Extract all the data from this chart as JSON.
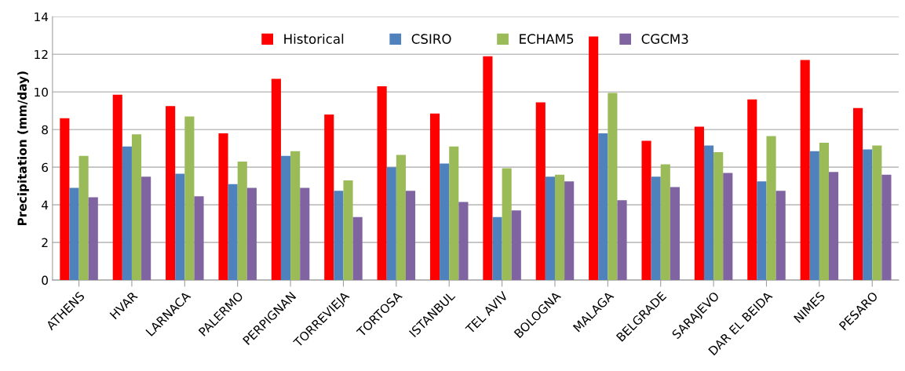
{
  "chart_data": {
    "type": "bar",
    "ylabel": "Precipitation (mm/day)",
    "categories": [
      "ATHENS",
      "HVAR",
      "LARNACA",
      "PALERMO",
      "PERPIGNAN",
      "TORREVIEJA",
      "TORTOSA",
      "ISTANBUL",
      "TEL AVIV",
      "BOLOGNA",
      "MALAGA",
      "BELGRADE",
      "SARAJEVO",
      "DAR EL BEIDA",
      "NIMES",
      "PESARO"
    ],
    "series": [
      {
        "name": "Historical",
        "color": "#ff0000",
        "values": [
          8.6,
          9.85,
          9.25,
          7.8,
          10.7,
          8.8,
          10.3,
          8.85,
          11.9,
          9.45,
          12.95,
          7.4,
          8.15,
          9.6,
          11.7,
          9.15
        ]
      },
      {
        "name": "CSIRO",
        "color": "#4f81bd",
        "values": [
          4.9,
          7.1,
          5.65,
          5.1,
          6.6,
          4.75,
          6.0,
          6.2,
          3.35,
          5.5,
          7.8,
          5.5,
          7.15,
          5.25,
          6.85,
          6.95
        ]
      },
      {
        "name": "ECHAM5",
        "color": "#9bbb59",
        "values": [
          6.6,
          7.75,
          8.7,
          6.3,
          6.85,
          5.3,
          6.65,
          7.1,
          5.95,
          5.6,
          9.95,
          6.15,
          6.8,
          7.65,
          7.3,
          7.15
        ]
      },
      {
        "name": "CGCM3",
        "color": "#8064a2",
        "values": [
          4.4,
          5.5,
          4.45,
          4.9,
          4.9,
          3.35,
          4.75,
          4.15,
          3.7,
          5.25,
          4.25,
          4.95,
          5.7,
          4.75,
          5.75,
          5.6
        ]
      }
    ],
    "ylim": [
      0,
      14
    ],
    "yticks": [
      0,
      2,
      4,
      6,
      8,
      10,
      12,
      14
    ],
    "grid": "y",
    "legend": "top"
  }
}
